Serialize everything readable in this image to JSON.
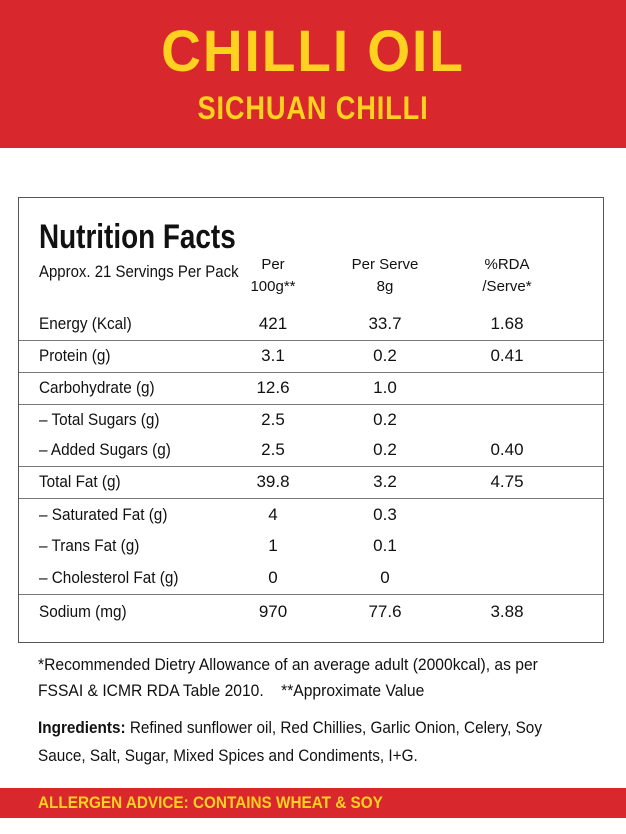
{
  "header": {
    "title": "CHILLI OIL",
    "subtitle": "SICHUAN CHILLI"
  },
  "table": {
    "title": "Nutrition Facts",
    "servings": "Approx. 21 Servings Per Pack",
    "columns": [
      [
        "Per",
        "100g**"
      ],
      [
        "Per Serve",
        "8g"
      ],
      [
        "%RDA",
        "/Serve*"
      ]
    ],
    "rows": [
      [
        "Energy (Kcal)",
        "421",
        "33.7",
        "1.68"
      ],
      [
        "Protein (g)",
        "3.1",
        "0.2",
        "0.41"
      ],
      [
        "Carbohydrate (g)",
        "12.6",
        "1.0"
      ],
      [
        "– Total Sugars (g)",
        "2.5",
        "0.2"
      ],
      [
        "– Added Sugars (g)",
        "2.5",
        "0.2",
        "0.40"
      ],
      [
        "Total Fat (g)",
        "39.8",
        "3.2",
        "4.75"
      ],
      [
        "– Saturated Fat (g)",
        "4",
        "0.3"
      ],
      [
        "– Trans Fat (g)",
        "1",
        "0.1"
      ],
      [
        "– Cholesterol Fat (g)",
        "0",
        "0"
      ],
      [
        "Sodium (mg)",
        "970",
        "77.6",
        "3.88"
      ]
    ]
  },
  "footnote": {
    "rda": "*Recommended Dietry Allowance of an average adult (2000kcal), as per FSSAI & ICMR RDA Table 2010.",
    "approx": "**Approximate Value"
  },
  "ingredients": {
    "label": "Ingredients:",
    "text": "Refined sunflower oil, Red Chillies, Garlic Onion, Celery, Soy Sauce, Salt, Sugar, Mixed Spices and Condiments, I+G."
  },
  "allergen": "ALLERGEN ADVICE: CONTAINS WHEAT & SOY"
}
